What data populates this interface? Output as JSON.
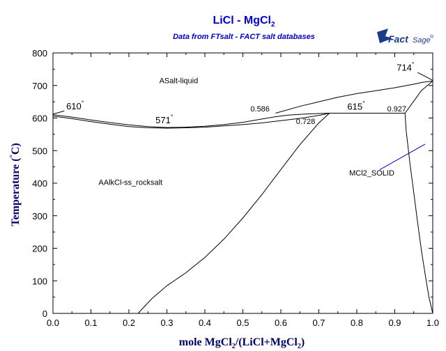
{
  "colors": {
    "title": "#0000cc",
    "axis": "#000000",
    "curve": "#000000",
    "phase_label_blue": "#0000cc",
    "logo_blue": "#1a3a8c"
  },
  "logo": {
    "text_main": "Fact",
    "text_sub": "Sage",
    "mark": "®"
  },
  "chart_data": {
    "type": "line",
    "title": {
      "main": "LiCl - MgCl",
      "sub": "2"
    },
    "subtitle": "Data from FTsalt - FACT salt databases",
    "xlabel": {
      "p1": "mole MgCl",
      "s1": "2",
      "p2": "/(LiCl+MgCl",
      "s2": "2",
      "p3": ")"
    },
    "ylabel": {
      "text": "Temperature (",
      "deg": "°",
      "unit": "C)"
    },
    "xlim": [
      0,
      1
    ],
    "ylim": [
      0,
      800
    ],
    "xticks": [
      0.0,
      0.1,
      0.2,
      0.3,
      0.4,
      0.5,
      0.6,
      0.7,
      0.8,
      0.9,
      1.0
    ],
    "xtick_labels": [
      "0.0",
      "0.1",
      "0.2",
      "0.3",
      "0.4",
      "0.5",
      "0.6",
      "0.7",
      "0.8",
      "0.9",
      "1.0"
    ],
    "yticks": [
      0,
      100,
      200,
      300,
      400,
      500,
      600,
      700,
      800
    ],
    "ytick_labels": [
      "0",
      "100",
      "200",
      "300",
      "400",
      "500",
      "600",
      "700",
      "800"
    ],
    "grid": false,
    "series": [
      {
        "id": "liquidus-licl",
        "x": [
          0,
          0.05,
          0.1,
          0.15,
          0.2,
          0.25,
          0.3,
          0.35,
          0.4,
          0.45,
          0.5,
          0.55,
          0.586,
          0.62,
          0.66,
          0.7,
          0.728
        ],
        "y": [
          610,
          603,
          594,
          586,
          579,
          574,
          571,
          572,
          575,
          580,
          587,
          597,
          604,
          609,
          612,
          614,
          615
        ]
      },
      {
        "id": "solidus-licl",
        "x": [
          0,
          0.05,
          0.1,
          0.15,
          0.2,
          0.25,
          0.3,
          0.35,
          0.4,
          0.45,
          0.5,
          0.55,
          0.6,
          0.65,
          0.7,
          0.728
        ],
        "y": [
          606,
          598,
          589,
          581,
          574,
          570,
          569,
          570,
          572,
          576,
          580,
          585,
          592,
          599,
          608,
          615
        ]
      },
      {
        "id": "liquidus-mgcl2",
        "x": [
          0.586,
          0.65,
          0.7,
          0.75,
          0.8,
          0.85,
          0.9,
          0.95,
          0.97,
          1.0
        ],
        "y": [
          615,
          636,
          650,
          664,
          675,
          684,
          693,
          704,
          709,
          714
        ]
      },
      {
        "id": "mgcl2-liquidus-lower",
        "x": [
          0.927,
          0.95,
          0.97,
          1.0
        ],
        "y": [
          615,
          652,
          684,
          714
        ]
      },
      {
        "id": "peritectic-line",
        "x": [
          0.728,
          0.927
        ],
        "y": [
          615,
          615
        ]
      },
      {
        "id": "solvus-licl",
        "x": [
          0.224,
          0.26,
          0.3,
          0.35,
          0.4,
          0.45,
          0.5,
          0.55,
          0.6,
          0.65,
          0.7,
          0.728
        ],
        "y": [
          0,
          45,
          85,
          125,
          172,
          228,
          293,
          365,
          442,
          518,
          585,
          615
        ]
      },
      {
        "id": "solvus-mgcl2",
        "x": [
          0.927,
          0.93,
          0.94,
          0.95,
          0.96,
          0.97,
          0.98,
          0.99,
          1.0
        ],
        "y": [
          615,
          560,
          460,
          370,
          280,
          195,
          120,
          50,
          0
        ]
      },
      {
        "id": "mgcl2-right-edge",
        "x": [
          0.97,
          0.985,
          1.0
        ],
        "y": [
          615,
          300,
          0
        ]
      },
      {
        "id": "liquidus-upper-guide",
        "x": [
          0.586,
          0.728
        ],
        "y": [
          604,
          615
        ]
      }
    ],
    "annotations": [
      {
        "id": "ann-610",
        "text": "610",
        "x": 0.035,
        "y": 627,
        "deg": true,
        "leader": [
          0.0,
          612,
          0.03,
          622
        ]
      },
      {
        "id": "ann-571",
        "text": "571",
        "x": 0.27,
        "y": 584,
        "deg": true
      },
      {
        "id": "ann-586",
        "text": "0.586",
        "x": 0.52,
        "y": 620,
        "deg": false
      },
      {
        "id": "ann-615",
        "text": "615",
        "x": 0.775,
        "y": 626,
        "deg": true
      },
      {
        "id": "ann-927",
        "text": "0.927",
        "x": 0.88,
        "y": 620,
        "deg": false
      },
      {
        "id": "ann-728",
        "text": "0.728",
        "x": 0.64,
        "y": 582,
        "deg": false
      },
      {
        "id": "ann-714",
        "text": "714",
        "x": 0.905,
        "y": 745,
        "deg": true,
        "leader": [
          0.96,
          740,
          1.0,
          716
        ]
      }
    ],
    "phase_labels": [
      {
        "id": "phase-liquid",
        "text": "ASalt-liquid",
        "x": 0.28,
        "y": 707,
        "color": "#000000"
      },
      {
        "id": "phase-rocksalt",
        "text": "AAlkCl-ss_rocksalt",
        "x": 0.12,
        "y": 395,
        "color": "#000000"
      },
      {
        "id": "phase-mgcl2-solid",
        "text": "MCl2_SOLID",
        "x": 0.78,
        "y": 423,
        "color": "#0000cc",
        "leader": [
          0.86,
          441,
          0.98,
          520
        ]
      }
    ]
  }
}
